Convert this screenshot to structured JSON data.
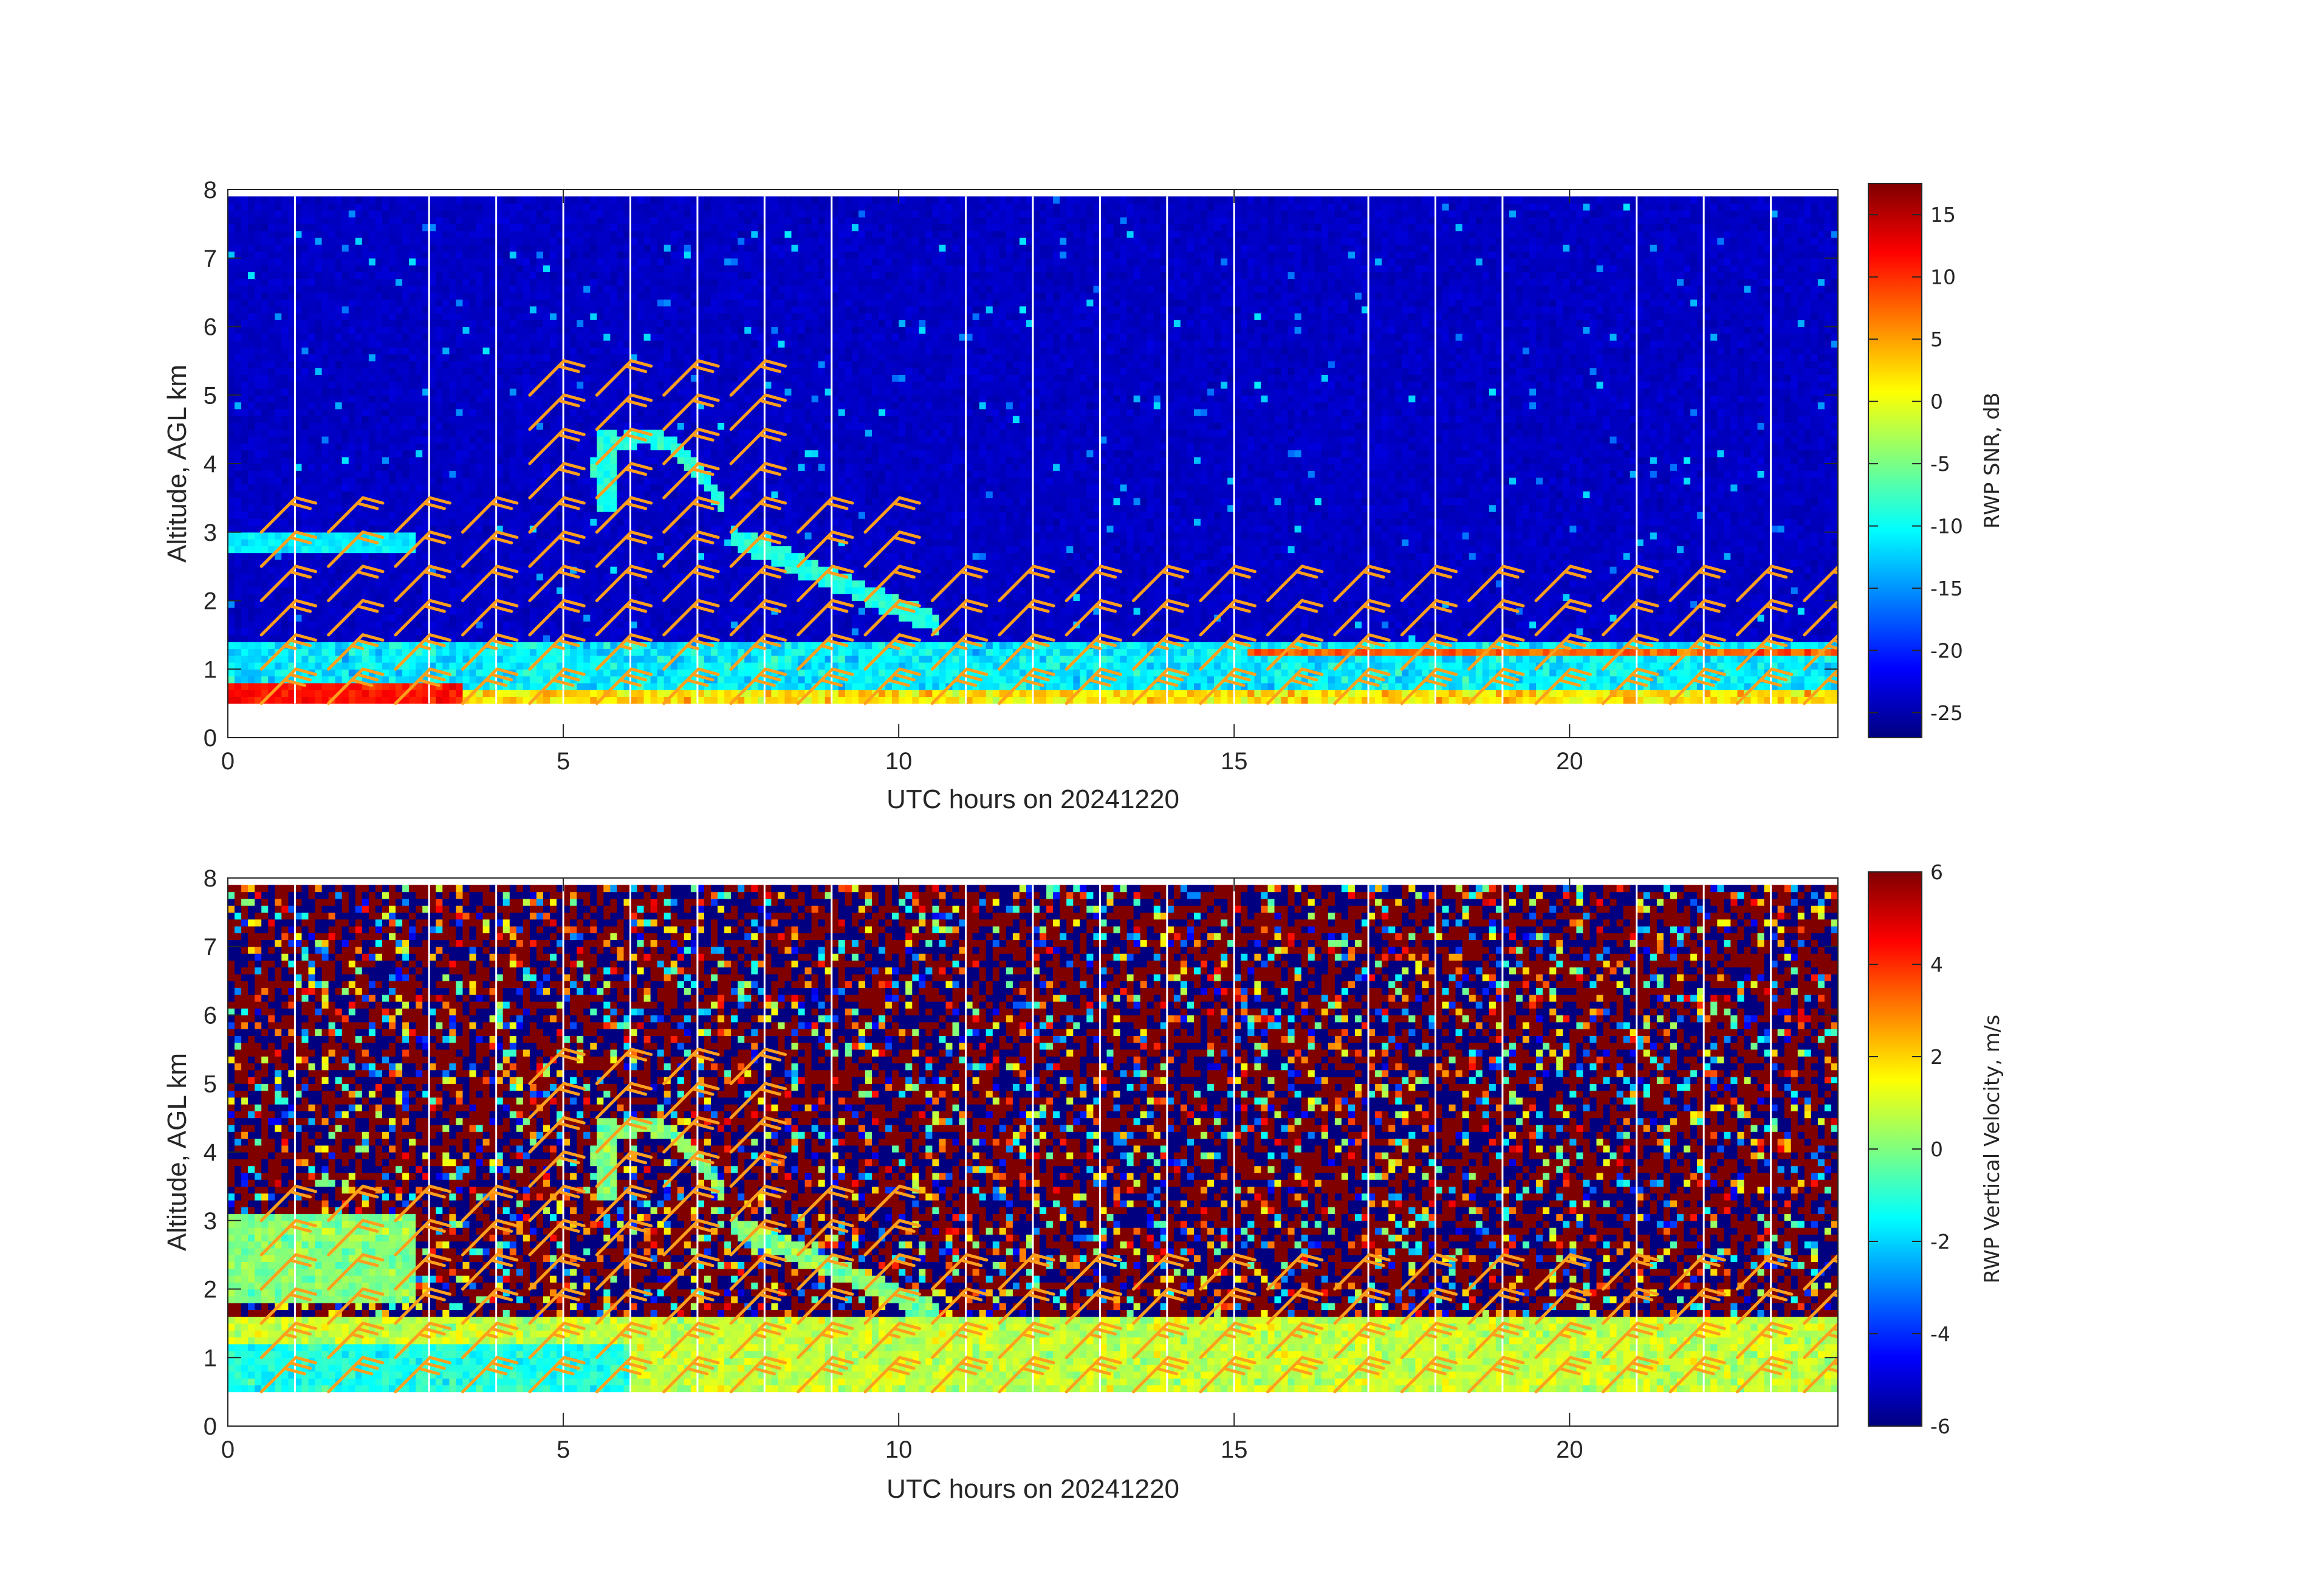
{
  "chart_data": [
    {
      "type": "heatmap",
      "title": "",
      "xlabel": "UTC hours on 20241220",
      "ylabel": "Altitude, AGL km",
      "xlim": [
        0,
        24
      ],
      "ylim": [
        0,
        8
      ],
      "x_ticks": [
        0,
        5,
        10,
        15,
        20
      ],
      "y_ticks": [
        0,
        1,
        2,
        3,
        4,
        5,
        6,
        7,
        8
      ],
      "data_range_km": [
        0.5,
        7.9
      ],
      "colorbar": {
        "label": "RWP SNR, dB",
        "colormap": "jet",
        "range": [
          -27,
          17.5
        ],
        "ticks": [
          15,
          10,
          5,
          0,
          -5,
          -10,
          -15,
          -20,
          -25
        ]
      },
      "field": "snr",
      "background_value_db": -24,
      "features": [
        {
          "name": "surface layer",
          "hours": [
            0,
            3.5
          ],
          "altitude_km": [
            0.5,
            0.8
          ],
          "value": 12
        },
        {
          "name": "boundary layer",
          "hours": [
            0,
            24
          ],
          "altitude_km": [
            0.5,
            1.45
          ],
          "value": -8
        },
        {
          "name": "cloud layer",
          "hours": [
            0,
            2.8
          ],
          "altitude_km": [
            2.7,
            3.0
          ],
          "value": -12
        },
        {
          "name": "cloud arc",
          "hours": [
            5.5,
            7.3
          ],
          "altitude_km": [
            3.3,
            4.6
          ],
          "value": -10
        },
        {
          "name": "cloud descent",
          "hours": [
            7.5,
            10.5
          ],
          "altitude_km": [
            1.6,
            3.0
          ],
          "value": -9
        }
      ]
    },
    {
      "type": "heatmap",
      "title": "",
      "xlabel": "UTC hours on 20241220",
      "ylabel": "Altitude, AGL km",
      "xlim": [
        0,
        24
      ],
      "ylim": [
        0,
        8
      ],
      "x_ticks": [
        0,
        5,
        10,
        15,
        20
      ],
      "y_ticks": [
        0,
        1,
        2,
        3,
        4,
        5,
        6,
        7,
        8
      ],
      "data_range_km": [
        0.5,
        7.9
      ],
      "colorbar": {
        "label": "RWP Vertical Velocity, m/s",
        "colormap": "jet",
        "range": [
          -6,
          6
        ],
        "ticks": [
          6,
          4,
          2,
          0,
          -2,
          -4,
          -6
        ]
      },
      "field": "velocity",
      "background": "noise",
      "features": [
        {
          "name": "boundary layer",
          "hours": [
            0,
            24
          ],
          "altitude_km": [
            0.5,
            1.6
          ],
          "value": 0.5
        },
        {
          "name": "cloud layer",
          "hours": [
            0,
            2.8
          ],
          "altitude_km": [
            2.0,
            3.1
          ],
          "value": 0.3
        },
        {
          "name": "cloud arc",
          "hours": [
            5.5,
            7.3
          ],
          "altitude_km": [
            3.3,
            4.6
          ],
          "value": 0.0
        },
        {
          "name": "cloud descent",
          "hours": [
            7.5,
            10.5
          ],
          "altitude_km": [
            1.6,
            3.0
          ],
          "value": 0.2
        }
      ]
    }
  ],
  "wind_barbs": {
    "color": "#ff9f1c",
    "hours": [
      0.5,
      1.5,
      2.5,
      3.5,
      4.5,
      5.5,
      6.5,
      7.5,
      8.5,
      9.5,
      10.5,
      11.5,
      12.5,
      13.5,
      14.5,
      15.5,
      16.5,
      17.5,
      18.5,
      19.5,
      20.5,
      21.5,
      22.5,
      23.5
    ],
    "altitudes_km": [
      0.5,
      1.0,
      1.5,
      2.0,
      2.5,
      3.0,
      3.5,
      4.0,
      4.5,
      5.0
    ],
    "direction_deg": 225,
    "speed_kt_by_altitude": [
      30,
      25,
      20,
      20,
      20,
      20,
      20,
      20,
      20,
      20
    ]
  },
  "vertical_gaps_hours": [
    1,
    3,
    4,
    5,
    6,
    7,
    8,
    9,
    11,
    12,
    13,
    14,
    15,
    17,
    18,
    19,
    21,
    22,
    23
  ]
}
